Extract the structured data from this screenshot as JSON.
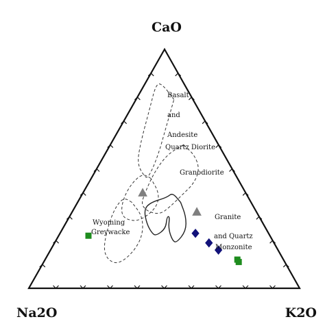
{
  "chart_data": {
    "type": "ternary",
    "title": "",
    "axes": {
      "top": "CaO",
      "left": "Na2O",
      "right": "K2O"
    },
    "grid": false,
    "field_labels": [
      "Basalt",
      "and",
      "Andesite",
      "Quartz Diorite",
      "Granodiorite",
      "Granite",
      "and Quartz",
      "Monzonite",
      "Wyoming",
      "Greywacke"
    ],
    "fields": [
      {
        "name": "basalt-andesite",
        "style": "dashed",
        "path": [
          [
            0.79,
            0.07
          ],
          [
            0.85,
            0.08
          ],
          [
            0.86,
            0.1
          ],
          [
            0.75,
            0.18
          ],
          [
            0.6,
            0.29
          ],
          [
            0.52,
            0.34
          ],
          [
            0.47,
            0.34
          ],
          [
            0.46,
            0.33
          ],
          [
            0.55,
            0.25
          ],
          [
            0.67,
            0.16
          ],
          [
            0.79,
            0.07
          ]
        ]
      },
      {
        "name": "quartz-diorite",
        "style": "dashed",
        "path": [
          [
            0.6,
            0.13
          ],
          [
            0.56,
            0.21
          ],
          [
            0.48,
            0.3
          ],
          [
            0.39,
            0.38
          ],
          [
            0.35,
            0.41
          ],
          [
            0.32,
            0.4
          ],
          [
            0.31,
            0.36
          ],
          [
            0.34,
            0.31
          ],
          [
            0.39,
            0.24
          ],
          [
            0.44,
            0.17
          ],
          [
            0.5,
            0.12
          ],
          [
            0.56,
            0.11
          ],
          [
            0.6,
            0.13
          ]
        ]
      },
      {
        "name": "granodiorite",
        "style": "dashed",
        "path": [
          [
            0.46,
            0.32
          ],
          [
            0.48,
            0.34
          ],
          [
            0.44,
            0.4
          ],
          [
            0.38,
            0.46
          ],
          [
            0.32,
            0.5
          ],
          [
            0.29,
            0.5
          ],
          [
            0.28,
            0.46
          ],
          [
            0.31,
            0.4
          ],
          [
            0.35,
            0.35
          ],
          [
            0.4,
            0.32
          ],
          [
            0.46,
            0.32
          ]
        ]
      },
      {
        "name": "granite-quartz-monzonite",
        "style": "dashed",
        "path": [
          [
            0.36,
            0.44
          ],
          [
            0.38,
            0.46
          ],
          [
            0.34,
            0.51
          ],
          [
            0.27,
            0.57
          ],
          [
            0.17,
            0.64
          ],
          [
            0.12,
            0.65
          ],
          [
            0.1,
            0.62
          ],
          [
            0.15,
            0.54
          ],
          [
            0.22,
            0.47
          ],
          [
            0.3,
            0.43
          ],
          [
            0.36,
            0.44
          ]
        ]
      },
      {
        "name": "wyoming-greywacke-field",
        "style": "solid",
        "path": [
          [
            0.36,
            0.26
          ],
          [
            0.4,
            0.27
          ],
          [
            0.38,
            0.3
          ],
          [
            0.36,
            0.37
          ],
          [
            0.33,
            0.41
          ],
          [
            0.27,
            0.43
          ],
          [
            0.23,
            0.43
          ],
          [
            0.22,
            0.42
          ],
          [
            0.25,
            0.37
          ],
          [
            0.3,
            0.34
          ],
          [
            0.3,
            0.33
          ],
          [
            0.25,
            0.36
          ],
          [
            0.2,
            0.37
          ],
          [
            0.19,
            0.36
          ],
          [
            0.24,
            0.3
          ],
          [
            0.3,
            0.27
          ],
          [
            0.36,
            0.26
          ]
        ]
      }
    ],
    "series": [
      {
        "marker": "triangle",
        "color": "#7f7f7f",
        "points": [
          {
            "CaO": 0.4,
            "Na2O": 0.38,
            "K2O": 0.22
          },
          {
            "CaO": 0.32,
            "Na2O": 0.22,
            "K2O": 0.46
          }
        ]
      },
      {
        "marker": "diamond",
        "color": "#12127a",
        "points": [
          {
            "CaO": 0.23,
            "Na2O": 0.27,
            "K2O": 0.5
          },
          {
            "CaO": 0.19,
            "Na2O": 0.24,
            "K2O": 0.57
          },
          {
            "CaO": 0.16,
            "Na2O": 0.22,
            "K2O": 0.62
          }
        ]
      },
      {
        "marker": "square",
        "color": "#1e8c1e",
        "points": [
          {
            "CaO": 0.22,
            "Na2O": 0.67,
            "K2O": 0.11
          },
          {
            "CaO": 0.12,
            "Na2O": 0.17,
            "K2O": 0.71
          },
          {
            "CaO": 0.11,
            "Na2O": 0.17,
            "K2O": 0.72
          }
        ]
      }
    ]
  }
}
